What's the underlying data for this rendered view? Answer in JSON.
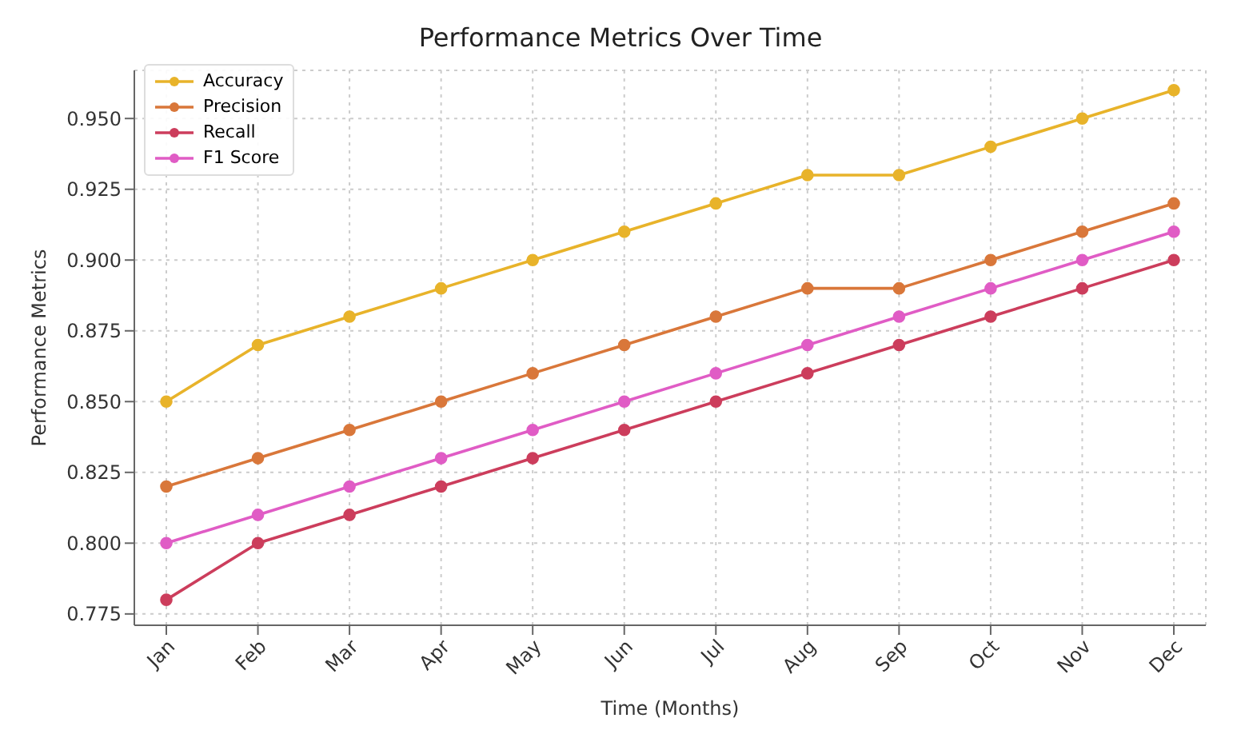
{
  "chart_data": {
    "type": "line",
    "title": "Performance Metrics Over Time",
    "xlabel": "Time (Months)",
    "ylabel": "Performance Metrics",
    "categories": [
      "Jan",
      "Feb",
      "Mar",
      "Apr",
      "May",
      "Jun",
      "Jul",
      "Aug",
      "Sep",
      "Oct",
      "Nov",
      "Dec"
    ],
    "series": [
      {
        "name": "Accuracy",
        "color": "#e8b32a",
        "values": [
          0.85,
          0.87,
          0.88,
          0.89,
          0.9,
          0.91,
          0.92,
          0.93,
          0.93,
          0.94,
          0.95,
          0.96
        ]
      },
      {
        "name": "Precision",
        "color": "#d9773a",
        "values": [
          0.82,
          0.83,
          0.84,
          0.85,
          0.86,
          0.87,
          0.88,
          0.89,
          0.89,
          0.9,
          0.91,
          0.92
        ]
      },
      {
        "name": "Recall",
        "color": "#cc3d5c",
        "values": [
          0.78,
          0.8,
          0.81,
          0.82,
          0.83,
          0.84,
          0.85,
          0.86,
          0.87,
          0.88,
          0.89,
          0.9
        ]
      },
      {
        "name": "F1 Score",
        "color": "#e05cc5",
        "values": [
          0.8,
          0.81,
          0.82,
          0.83,
          0.84,
          0.85,
          0.86,
          0.87,
          0.88,
          0.89,
          0.9,
          0.91
        ]
      }
    ],
    "ylim": [
      0.771,
      0.967
    ],
    "yticks": [
      0.775,
      {
        "value": 0.8,
        "label": "0.800"
      },
      0.825,
      {
        "value": 0.85,
        "label": "0.850"
      },
      0.875,
      {
        "value": 0.9,
        "label": "0.900"
      },
      0.925,
      {
        "value": 0.95,
        "label": "0.950"
      }
    ],
    "grid": true,
    "legend": "top left",
    "marker": "circle",
    "line_style": "solid"
  }
}
